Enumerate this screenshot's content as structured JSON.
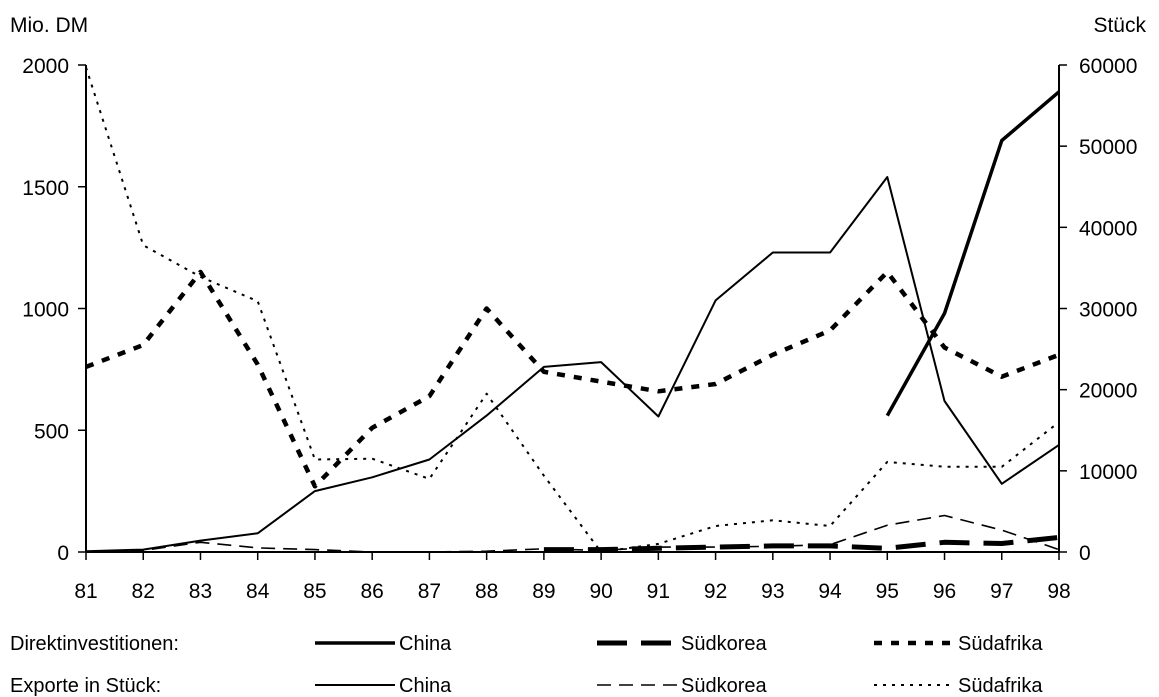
{
  "chart_data": {
    "type": "line",
    "categories": [
      "81",
      "82",
      "83",
      "84",
      "85",
      "86",
      "87",
      "88",
      "89",
      "90",
      "91",
      "92",
      "93",
      "94",
      "95",
      "96",
      "97",
      "98"
    ],
    "left_axis": {
      "label": "Mio. DM",
      "ylim": [
        0,
        2000
      ],
      "ticks": [
        "0",
        "500",
        "1000",
        "1500",
        "2000"
      ]
    },
    "right_axis": {
      "label": "Stück",
      "ylim": [
        0,
        60000
      ],
      "ticks": [
        "0",
        "10000",
        "20000",
        "30000",
        "40000",
        "50000",
        "60000"
      ]
    },
    "grid": false,
    "series": [
      {
        "group": "Direktinvestitionen",
        "name": "China",
        "axis": "left",
        "values": [
          null,
          null,
          null,
          null,
          null,
          null,
          null,
          null,
          null,
          null,
          null,
          null,
          null,
          null,
          560,
          980,
          1690,
          1890
        ]
      },
      {
        "group": "Direktinvestitionen",
        "name": "Südkorea",
        "axis": "left",
        "values": [
          null,
          null,
          null,
          null,
          null,
          null,
          null,
          null,
          10,
          10,
          15,
          20,
          25,
          25,
          15,
          40,
          35,
          60
        ]
      },
      {
        "group": "Direktinvestitionen",
        "name": "Südafrika",
        "axis": "left",
        "values": [
          760,
          850,
          1150,
          770,
          270,
          510,
          640,
          1000,
          740,
          700,
          660,
          690,
          810,
          910,
          1150,
          840,
          720,
          810
        ]
      },
      {
        "group": "Exporte in Stück",
        "name": "China",
        "axis": "right",
        "values": [
          100,
          300,
          1400,
          2300,
          7500,
          9200,
          11400,
          16800,
          22800,
          23400,
          16700,
          31000,
          36900,
          36900,
          46200,
          18600,
          8400,
          13200
        ]
      },
      {
        "group": "Exporte in Stück",
        "name": "Südkorea",
        "axis": "right",
        "values": [
          0,
          200,
          1200,
          500,
          300,
          0,
          0,
          100,
          400,
          200,
          600,
          600,
          700,
          900,
          3300,
          4500,
          2700,
          300
        ]
      },
      {
        "group": "Exporte in Stück",
        "name": "Südafrika",
        "axis": "right",
        "values": [
          59700,
          37800,
          33900,
          30900,
          11400,
          11500,
          9000,
          19500,
          9400,
          0,
          1000,
          3200,
          3900,
          3200,
          11100,
          10500,
          10500,
          16000
        ]
      }
    ],
    "legend": {
      "placement": "bottom",
      "rows": [
        {
          "label": "Direktinvestitionen:",
          "entries": [
            "China",
            "Südkorea",
            "Südafrika"
          ]
        },
        {
          "label": "Exporte in Stück:",
          "entries": [
            "China",
            "Südkorea",
            "Südafrika"
          ]
        }
      ]
    }
  }
}
